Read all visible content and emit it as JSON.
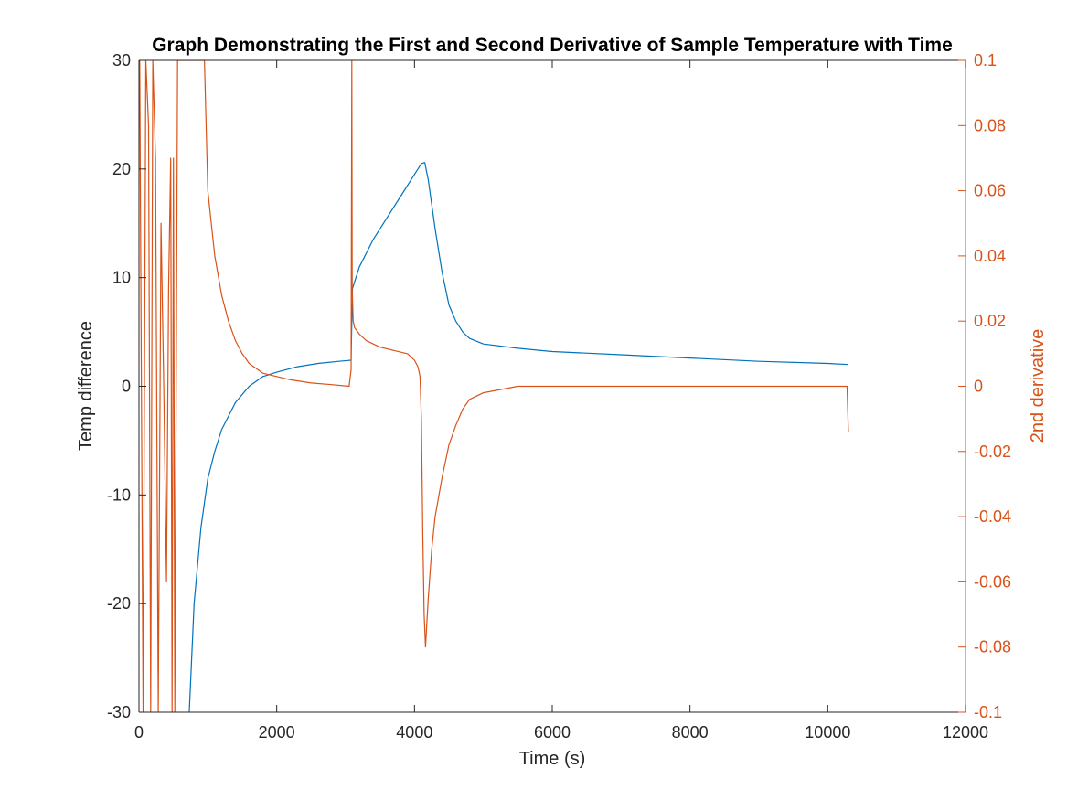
{
  "chart_data": {
    "type": "line",
    "title": "Graph Demonstrating the First and Second Derivative of Sample Temperature with Time",
    "xlabel": "Time (s)",
    "ylabel_left": "Temp difference",
    "ylabel_right": "2nd derivative",
    "xlim": [
      0,
      12000
    ],
    "ylim_left": [
      -30,
      30
    ],
    "ylim_right": [
      -0.1,
      0.1
    ],
    "x_ticks": [
      0,
      2000,
      4000,
      6000,
      8000,
      10000,
      12000
    ],
    "y_left_ticks": [
      -30,
      -20,
      -10,
      0,
      10,
      20,
      30
    ],
    "y_right_ticks": [
      -0.1,
      -0.08,
      -0.06,
      -0.04,
      -0.02,
      0,
      0.02,
      0.04,
      0.06,
      0.08,
      0.1
    ],
    "x_tick_labels": [
      "0",
      "2000",
      "4000",
      "6000",
      "8000",
      "10000",
      "12000"
    ],
    "y_left_tick_labels": [
      "-30",
      "-20",
      "-10",
      "0",
      "10",
      "20",
      "30"
    ],
    "y_right_tick_labels": [
      "-0.1",
      "-0.08",
      "-0.06",
      "-0.04",
      "-0.02",
      "0",
      "0.02",
      "0.04",
      "0.06",
      "0.08",
      "0.1"
    ],
    "grid": false,
    "colors": {
      "series1": "#0072BD",
      "series2": "#D95319",
      "axis_left": "#262626",
      "axis_right": "#D95319"
    },
    "series": [
      {
        "axis": "left",
        "x": [
          730,
          800,
          900,
          1000,
          1100,
          1200,
          1400,
          1600,
          1800,
          2000,
          2300,
          2600,
          2900,
          3080,
          3100,
          3200,
          3400,
          3600,
          3800,
          4000,
          4100,
          4150,
          4200,
          4300,
          4400,
          4500,
          4600,
          4700,
          4800,
          5000,
          5500,
          6000,
          7000,
          8000,
          9000,
          10000,
          10300
        ],
        "y": [
          -30,
          -20,
          -13,
          -8.5,
          -6,
          -4,
          -1.5,
          0,
          0.9,
          1.3,
          1.8,
          2.1,
          2.3,
          2.4,
          9,
          11,
          13.5,
          15.5,
          17.5,
          19.5,
          20.5,
          20.6,
          19,
          14.5,
          10.5,
          7.5,
          6,
          5,
          4.4,
          3.9,
          3.5,
          3.2,
          2.9,
          2.6,
          2.3,
          2.1,
          2.0
        ]
      },
      {
        "axis": "right",
        "x": [
          10,
          60,
          100,
          140,
          170,
          200,
          240,
          280,
          320,
          360,
          400,
          430,
          460,
          480,
          500,
          520,
          560,
          620,
          700,
          760,
          800,
          850,
          900,
          950,
          1000,
          1100,
          1200,
          1300,
          1400,
          1500,
          1600,
          1800,
          2000,
          2200,
          2500,
          2800,
          3050,
          3080,
          3090,
          3095,
          3110,
          3130,
          3200,
          3300,
          3500,
          3700,
          3900,
          4000,
          4050,
          4080,
          4100,
          4120,
          4140,
          4160,
          4200,
          4250,
          4300,
          4400,
          4500,
          4600,
          4700,
          4800,
          5000,
          5500,
          6000,
          7000,
          8000,
          9000,
          10000,
          10280,
          10300
        ],
        "y": [
          0.1,
          -0.1,
          0.1,
          0.08,
          -0.1,
          0.1,
          0.07,
          -0.1,
          0.05,
          0.0,
          -0.06,
          0.03,
          0.07,
          -0.1,
          0.07,
          -0.1,
          0.1,
          0.1,
          0.1,
          0.1,
          0.1,
          0.1,
          0.1,
          0.1,
          0.06,
          0.04,
          0.028,
          0.02,
          0.014,
          0.01,
          0.007,
          0.004,
          0.003,
          0.002,
          0.001,
          0.0005,
          0.0,
          0.005,
          0.1,
          0.03,
          0.02,
          0.018,
          0.016,
          0.014,
          0.012,
          0.011,
          0.01,
          0.008,
          0.006,
          0.003,
          -0.01,
          -0.045,
          -0.07,
          -0.08,
          -0.065,
          -0.05,
          -0.04,
          -0.028,
          -0.018,
          -0.012,
          -0.007,
          -0.004,
          -0.002,
          0.0,
          0.0,
          0.0,
          0.0,
          0.0,
          0.0,
          0.0,
          -0.014
        ]
      }
    ]
  }
}
